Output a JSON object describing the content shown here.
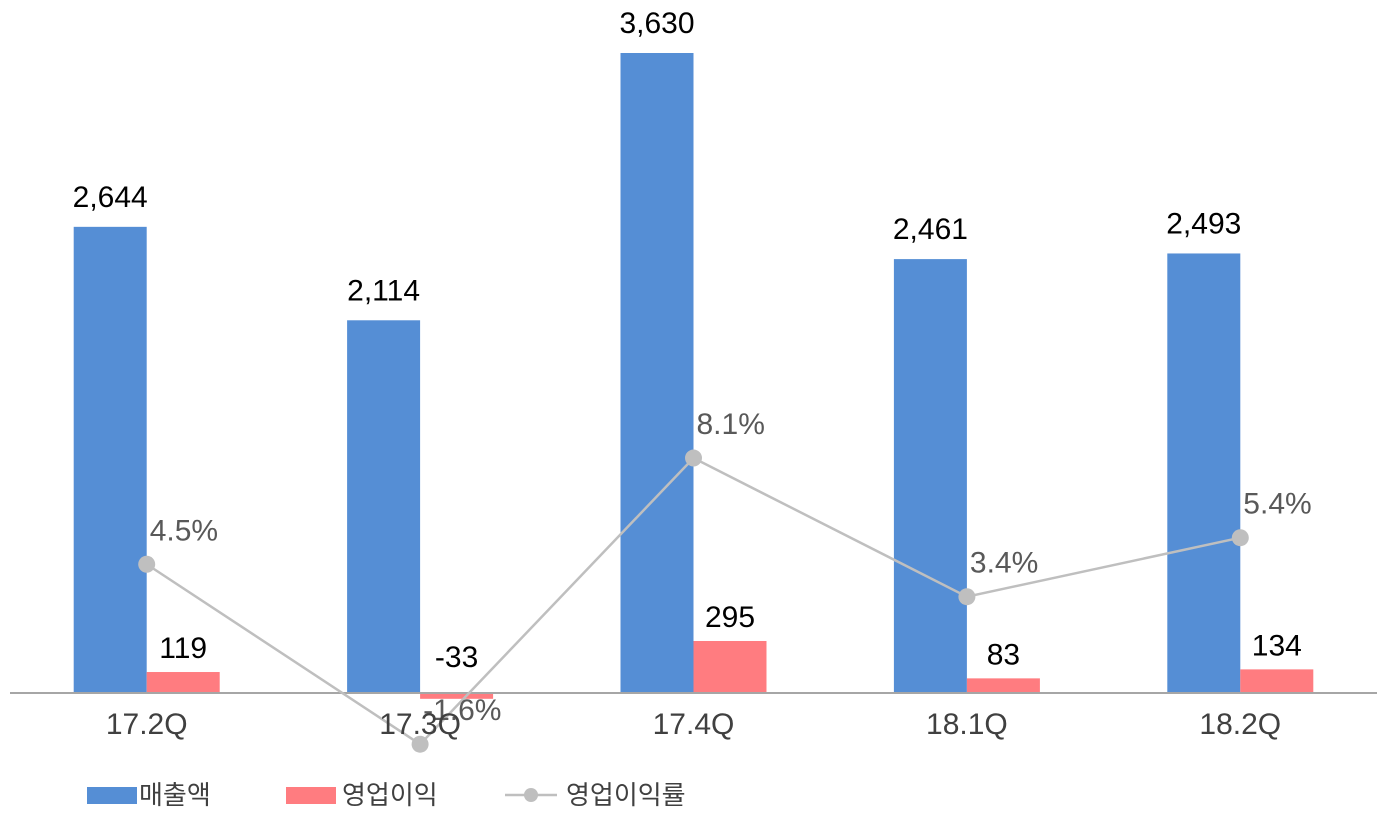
{
  "chart_data": {
    "type": "bar",
    "categories": [
      "17.2Q",
      "17.3Q",
      "17.4Q",
      "18.1Q",
      "18.2Q"
    ],
    "series": [
      {
        "name": "매출액",
        "type": "bar",
        "color": "#558ED5",
        "values": [
          2644,
          2114,
          3630,
          2461,
          2493
        ],
        "labels": [
          "2,644",
          "2,114",
          "3,630",
          "2,461",
          "2,493"
        ]
      },
      {
        "name": "영업이익",
        "type": "bar",
        "color": "#FF7C80",
        "values": [
          119,
          -33,
          295,
          83,
          134
        ],
        "labels": [
          "119",
          "-33",
          "295",
          "83",
          "134"
        ]
      },
      {
        "name": "영업이익률",
        "type": "line",
        "axis": "secondary",
        "color": "#BFBFBF",
        "values": [
          4.5,
          -1.6,
          8.1,
          3.4,
          5.4
        ],
        "labels": [
          "4.5%",
          "-1.6%",
          "8.1%",
          "3.4%",
          "5.4%"
        ]
      }
    ],
    "ylim": [
      -100,
      3700
    ],
    "y2lim": [
      -2.0,
      13.0
    ],
    "grid": false,
    "legend_position": "bottom-left"
  }
}
